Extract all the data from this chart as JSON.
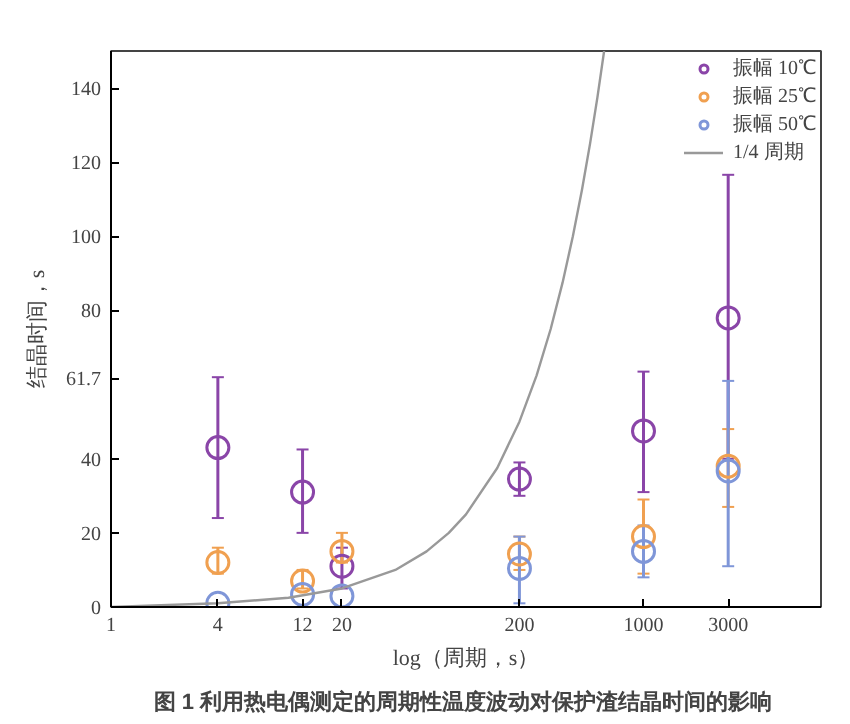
{
  "chart_data": {
    "type": "scatter",
    "xlabel": "log（周期，s）",
    "ylabel": "结晶时间，s",
    "log": "x",
    "xlim": [
      1,
      10000
    ],
    "ylim": [
      0,
      150
    ],
    "xticks": [
      1,
      4,
      12,
      20,
      200,
      1000,
      3000
    ],
    "yticks": [
      0,
      20,
      40,
      61.7,
      80,
      100,
      120,
      140
    ],
    "grid": false,
    "legend": "top right",
    "marker": "circle",
    "x": [
      4,
      12,
      20,
      200,
      1000,
      3000
    ],
    "series": [
      {
        "name": "振幅 10℃",
        "color": "#8a45a8",
        "values": [
          43,
          31,
          11,
          34.5,
          47.5,
          78
        ],
        "errors": [
          [
            24,
            62
          ],
          [
            20,
            42.5
          ],
          [
            5,
            16
          ],
          [
            30,
            39
          ],
          [
            31,
            63.5
          ],
          [
            40,
            116.6
          ]
        ]
      },
      {
        "name": "振幅 25℃",
        "color": "#f0a050",
        "values": [
          12,
          7,
          15,
          14.3,
          19,
          38
        ],
        "errors": [
          [
            9,
            16
          ],
          [
            5,
            10
          ],
          [
            12,
            20
          ],
          [
            10,
            19
          ],
          [
            9,
            29
          ],
          [
            27,
            48
          ]
        ]
      },
      {
        "name": "振幅 50℃",
        "color": "#7f96d8",
        "values": [
          1,
          3.4,
          3,
          10.4,
          15,
          36.7
        ],
        "errors": [
          null,
          null,
          null,
          [
            1,
            19
          ],
          [
            8,
            22
          ],
          [
            11,
            61
          ]
        ]
      },
      {
        "name": "1/4 周期",
        "type": "line",
        "color": "#999999",
        "marker": "none",
        "x": [
          1,
          4,
          10,
          20,
          40,
          60,
          80,
          100,
          150,
          200,
          250,
          300,
          350,
          400,
          450,
          500,
          550,
          600
        ],
        "values": [
          0,
          1,
          2.5,
          5,
          10,
          15,
          20,
          25,
          37.5,
          50,
          62.5,
          75,
          87.5,
          100,
          112.5,
          125,
          137.5,
          150
        ]
      }
    ],
    "annotations": [
      "图 1  利用热电偶测定的周期性温度波动对保护渣结晶时间的影响"
    ]
  }
}
